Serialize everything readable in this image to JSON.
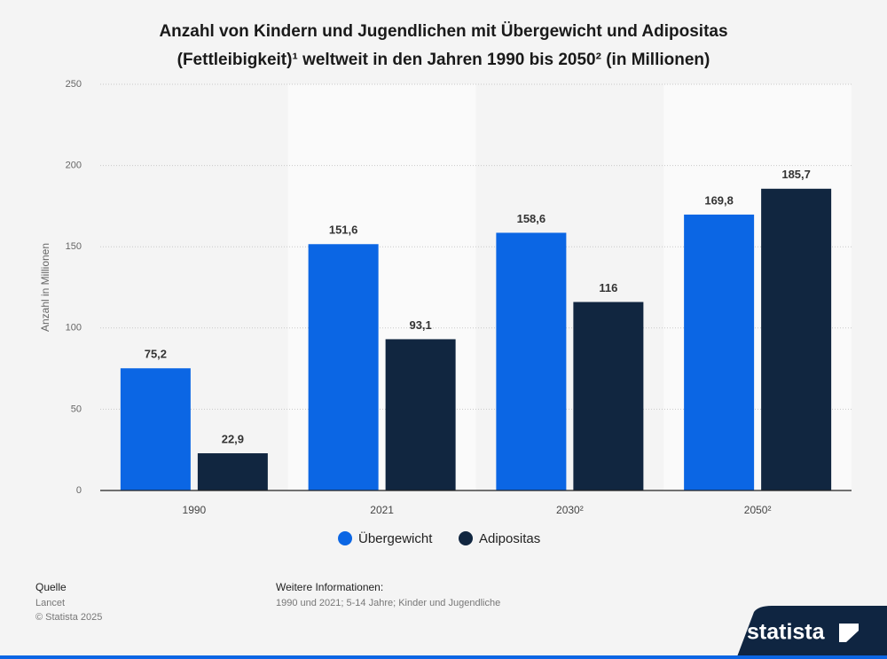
{
  "chart_data": {
    "type": "bar",
    "title": "Anzahl von Kindern und Jugendlichen mit Übergewicht und Adipositas",
    "subtitle": "(Fettleibigkeit)¹ weltweit in den Jahren 1990 bis 2050² (in Millionen)",
    "y_label": "Anzahl in Millionen",
    "categories": [
      "1990",
      "2021",
      "2030²",
      "2050²"
    ],
    "series": [
      {
        "name": "Übergewicht",
        "color": "#0b66e4",
        "values": [
          75.2,
          151.6,
          158.6,
          169.8
        ],
        "value_labels": [
          "75,2",
          "151,6",
          "158,6",
          "169,8"
        ]
      },
      {
        "name": "Adipositas",
        "color": "#112640",
        "values": [
          22.9,
          93.1,
          116,
          185.7
        ],
        "value_labels": [
          "22,9",
          "93,1",
          "116",
          "185,7"
        ]
      }
    ],
    "ylim": [
      0,
      250
    ],
    "yticks": [
      0,
      50,
      100,
      150,
      200,
      250
    ],
    "grid": true,
    "legend": "bottom"
  },
  "footer": {
    "source_title": "Quelle",
    "source": "Lancet",
    "copyright": "© Statista 2025",
    "info_title": "Weitere Informationen:",
    "info": "1990 und 2021; 5-14 Jahre; Kinder und Jugendliche",
    "logo": "statista"
  }
}
